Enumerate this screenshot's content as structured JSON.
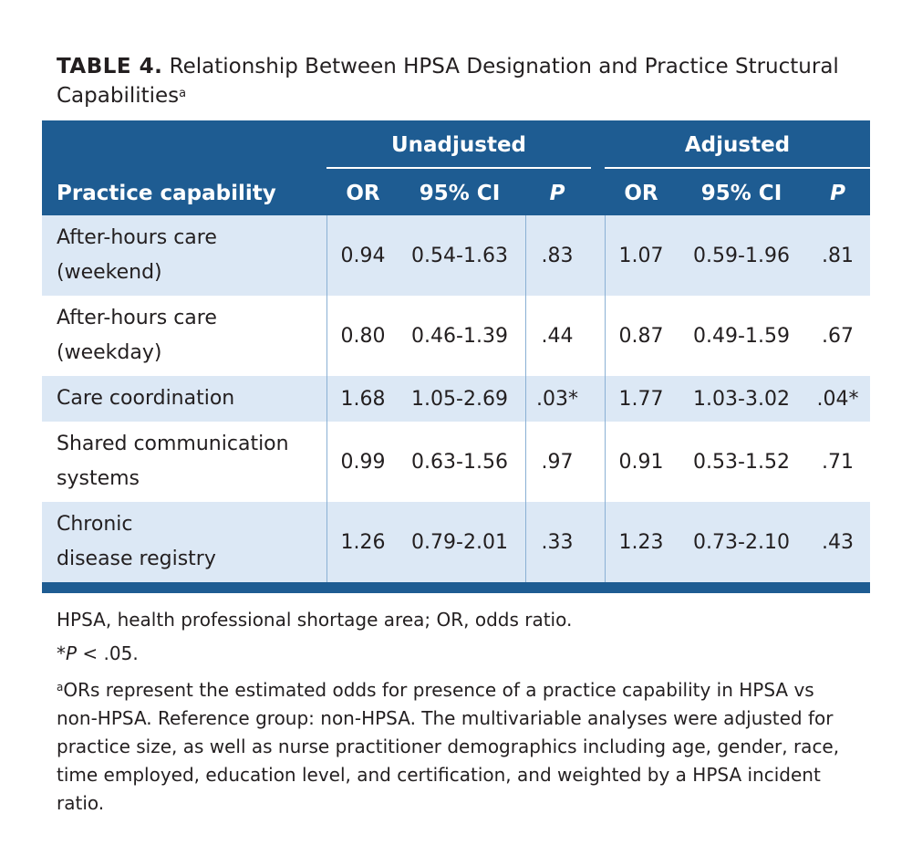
{
  "caption": {
    "lead": "TABLE 4.",
    "title": "Relationship Between HPSA Designation and Practice Structural Capabilities",
    "marker": "a"
  },
  "header": {
    "group_unadjusted": "Unadjusted",
    "group_adjusted": "Adjusted",
    "col_capability": "Practice capability",
    "col_or": "OR",
    "col_ci": "95% CI",
    "col_p": "P"
  },
  "rows": [
    {
      "capability_line1": "After-hours care",
      "capability_line2": "(weekend)",
      "u_or": "0.94",
      "u_ci": "0.54-1.63",
      "u_p": ".83",
      "a_or": "1.07",
      "a_ci": "0.59-1.96",
      "a_p": ".81"
    },
    {
      "capability_line1": "After-hours care",
      "capability_line2": "(weekday)",
      "u_or": "0.80",
      "u_ci": "0.46-1.39",
      "u_p": ".44",
      "a_or": "0.87",
      "a_ci": "0.49-1.59",
      "a_p": ".67"
    },
    {
      "capability_line1": "Care coordination",
      "capability_line2": "",
      "u_or": "1.68",
      "u_ci": "1.05-2.69",
      "u_p": ".03*",
      "a_or": "1.77",
      "a_ci": "1.03-3.02",
      "a_p": ".04*"
    },
    {
      "capability_line1": "Shared communication",
      "capability_line2": "systems",
      "u_or": "0.99",
      "u_ci": "0.63-1.56",
      "u_p": ".97",
      "a_or": "0.91",
      "a_ci": "0.53-1.52",
      "a_p": ".71"
    },
    {
      "capability_line1": "Chronic",
      "capability_line2": "disease registry",
      "u_or": "1.26",
      "u_ci": "0.79-2.01",
      "u_p": ".33",
      "a_or": "1.23",
      "a_ci": "0.73-2.10",
      "a_p": ".43"
    }
  ],
  "notes": {
    "abbrev": "HPSA, health professional shortage area; OR, odds ratio.",
    "sig_star": "*",
    "sig_p": "P",
    "sig_rest": " < .05.",
    "footnote_marker": "a",
    "footnote_text": "ORs represent the estimated odds for presence of a practice capability in HPSA vs non-HPSA. Reference group: non-HPSA. The multivariable analyses were adjusted for practice size, as well as nurse practitioner demographics including age, gender, race, time employed, education level, and certification, and weighted by a HPSA incident ratio."
  }
}
